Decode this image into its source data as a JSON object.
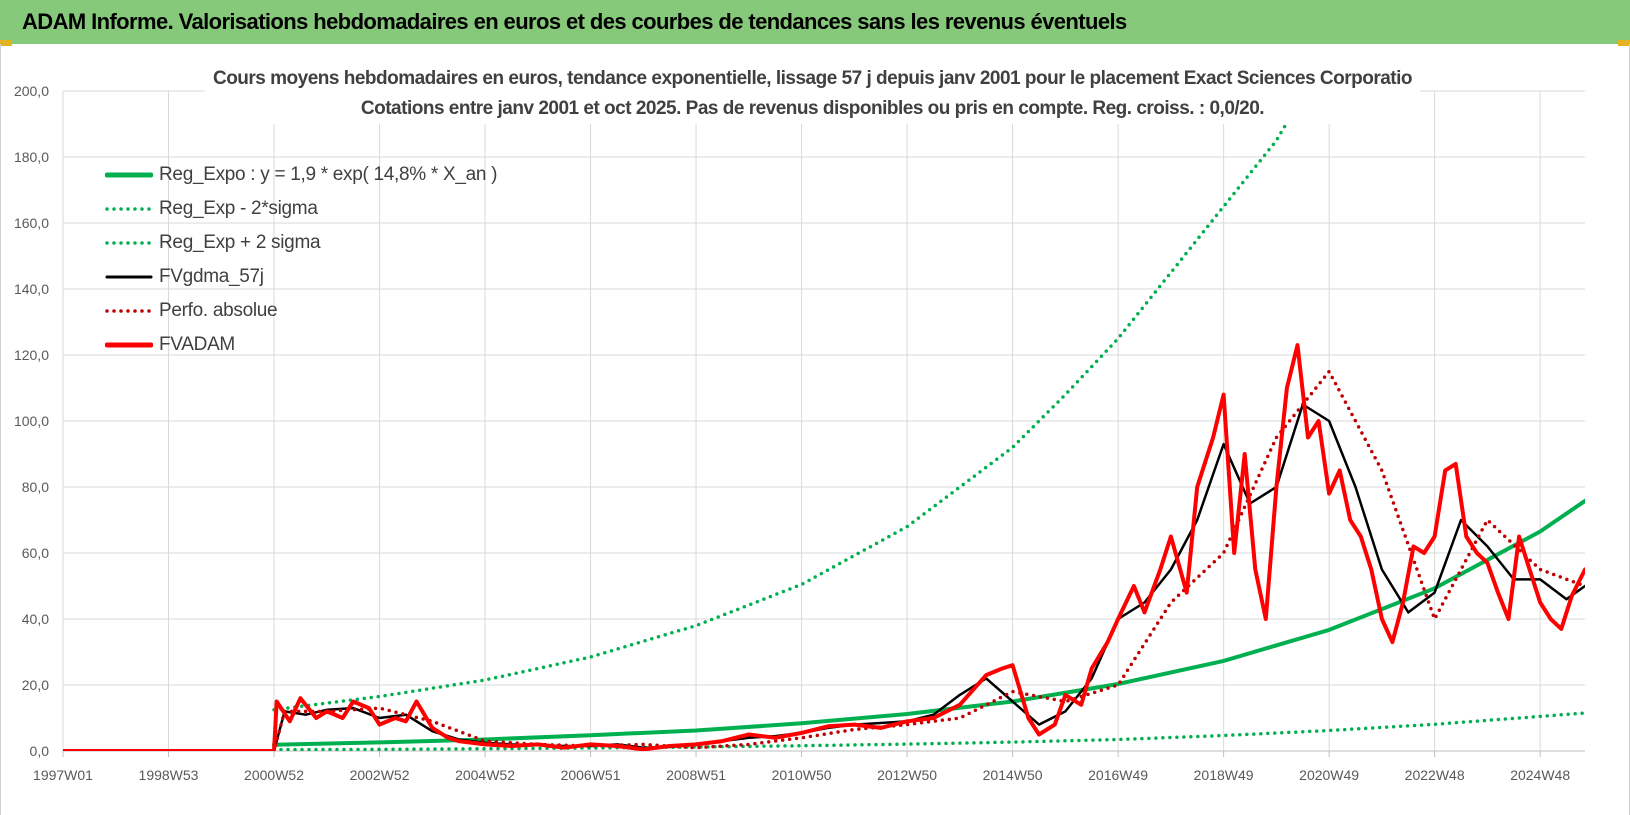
{
  "app_title": "ADAM Informe. Valorisations hebdomadaires en euros et des courbes de tendances sans les revenus éventuels",
  "chart_data": {
    "type": "line",
    "title": "Cours moyens hebdomadaires en euros, tendance exponentielle, lissage 57 j depuis janv 2001 pour le placement Exact Sciences Corporatio",
    "subtitle": "Cotations entre janv 2001 et oct 2025. Pas de revenus disponibles ou pris en compte. Reg. croiss. : 0,0/20.",
    "xlabel": "",
    "ylabel": "",
    "x_tick_labels": [
      "1997W01",
      "1998W53",
      "2000W52",
      "2002W52",
      "2004W52",
      "2006W51",
      "2008W51",
      "2010W50",
      "2012W50",
      "2014W50",
      "2016W49",
      "2018W49",
      "2020W49",
      "2022W48",
      "2024W48"
    ],
    "x_tick_years": [
      1997.0,
      1999.0,
      2001.0,
      2003.0,
      2005.0,
      2007.0,
      2009.0,
      2011.0,
      2013.0,
      2015.0,
      2017.0,
      2019.0,
      2021.0,
      2023.0,
      2025.0
    ],
    "xlim": [
      1997.0,
      2025.85
    ],
    "ylim": [
      0,
      200
    ],
    "y_ticks": [
      "0,0",
      "20,0",
      "40,0",
      "60,0",
      "80,0",
      "100,0",
      "120,0",
      "140,0",
      "160,0",
      "180,0",
      "200,0"
    ],
    "grid": true,
    "legend_position": "top-left",
    "series": [
      {
        "name": "Reg_Expo : y = 1,9 * exp( 14,8% *  X_an )",
        "style": "solid",
        "color": "#00b050",
        "x": [
          2001.0,
          2003.0,
          2005.0,
          2007.0,
          2009.0,
          2011.0,
          2013.0,
          2015.0,
          2017.0,
          2019.0,
          2021.0,
          2023.0,
          2025.0,
          2025.85
        ],
        "y": [
          1.9,
          2.6,
          3.5,
          4.8,
          6.2,
          8.4,
          11.2,
          15.0,
          20.3,
          27.3,
          36.7,
          49.3,
          66.5,
          75.8
        ]
      },
      {
        "name": "Reg_Exp - 2*sigma",
        "style": "dotted",
        "color": "#00b050",
        "x": [
          2001.0,
          2003.0,
          2005.0,
          2007.0,
          2009.0,
          2011.0,
          2013.0,
          2015.0,
          2017.0,
          2019.0,
          2021.0,
          2023.0,
          2025.0,
          2025.85
        ],
        "y": [
          0.4,
          0.5,
          0.7,
          0.9,
          1.2,
          1.6,
          2.1,
          2.7,
          3.5,
          4.7,
          6.2,
          8.1,
          10.5,
          11.5
        ]
      },
      {
        "name": "Reg_Exp + 2 sigma",
        "style": "dotted",
        "color": "#00b050",
        "x": [
          2001.0,
          2003.0,
          2005.0,
          2007.0,
          2009.0,
          2011.0,
          2013.0,
          2015.0,
          2016.0,
          2017.0,
          2018.0,
          2019.0,
          2020.0,
          2020.55
        ],
        "y": [
          12.5,
          16.5,
          21.5,
          28.5,
          38.0,
          50.5,
          68.0,
          92.0,
          108.0,
          125.0,
          145.0,
          165.0,
          185.0,
          200.0
        ]
      },
      {
        "name": "FVgdma_57j",
        "style": "solid",
        "color": "#000000",
        "x": [
          1997.0,
          2001.0,
          2001.2,
          2001.6,
          2002.0,
          2002.5,
          2003.0,
          2003.5,
          2004.0,
          2004.5,
          2005.0,
          2005.5,
          2006.0,
          2006.5,
          2007.0,
          2007.5,
          2008.0,
          2008.5,
          2009.0,
          2009.5,
          2010.0,
          2010.5,
          2011.0,
          2011.5,
          2012.0,
          2012.5,
          2013.0,
          2013.5,
          2014.0,
          2014.5,
          2015.0,
          2015.5,
          2016.0,
          2016.5,
          2017.0,
          2017.5,
          2018.0,
          2018.5,
          2019.0,
          2019.5,
          2020.0,
          2020.5,
          2021.0,
          2021.5,
          2022.0,
          2022.5,
          2023.0,
          2023.5,
          2024.0,
          2024.5,
          2025.0,
          2025.5,
          2025.85
        ],
        "y": [
          0,
          0,
          12.0,
          11.0,
          12.5,
          13.0,
          10.0,
          11.0,
          6.0,
          3.5,
          2.5,
          2.0,
          1.8,
          1.5,
          1.5,
          2.0,
          1.0,
          1.2,
          2.0,
          3.0,
          4.0,
          4.5,
          5.5,
          7.0,
          8.0,
          8.5,
          9.0,
          11.0,
          17.0,
          22.0,
          15.0,
          8.0,
          12.0,
          22.0,
          40.0,
          45.0,
          55.0,
          70.0,
          93.0,
          75.0,
          80.0,
          105.0,
          100.0,
          80.0,
          55.0,
          42.0,
          48.0,
          70.0,
          62.0,
          52.0,
          52.0,
          46.0,
          50.0
        ]
      },
      {
        "name": "Perfo. absolue",
        "style": "dotted",
        "color": "#c00000",
        "x": [
          1997.0,
          2001.0,
          2001.2,
          2002.0,
          2003.0,
          2004.0,
          2005.0,
          2006.0,
          2007.0,
          2008.0,
          2009.0,
          2010.0,
          2011.0,
          2012.0,
          2013.0,
          2014.0,
          2015.0,
          2016.0,
          2017.0,
          2018.0,
          2019.0,
          2020.0,
          2021.0,
          2022.0,
          2023.0,
          2024.0,
          2025.0,
          2025.85
        ],
        "y": [
          0,
          0,
          12.0,
          12.0,
          13.0,
          9.0,
          3.0,
          2.0,
          1.5,
          2.0,
          1.0,
          2.0,
          4.0,
          6.5,
          8.0,
          10.0,
          18.0,
          15.0,
          20.0,
          45.0,
          60.0,
          95.0,
          115.0,
          85.0,
          40.0,
          70.0,
          55.0,
          50.0
        ]
      },
      {
        "name": "FVADAM",
        "style": "solid",
        "color": "#ff0000",
        "x": [
          1997.0,
          2001.0,
          2001.05,
          2001.3,
          2001.5,
          2001.8,
          2002.0,
          2002.3,
          2002.5,
          2002.8,
          2003.0,
          2003.3,
          2003.5,
          2003.7,
          2004.0,
          2004.3,
          2004.5,
          2005.0,
          2005.5,
          2006.0,
          2006.5,
          2007.0,
          2007.5,
          2008.0,
          2008.5,
          2009.0,
          2009.5,
          2010.0,
          2010.5,
          2011.0,
          2011.5,
          2012.0,
          2012.5,
          2013.0,
          2013.5,
          2014.0,
          2014.5,
          2014.8,
          2015.0,
          2015.3,
          2015.5,
          2015.8,
          2016.0,
          2016.3,
          2016.5,
          2016.8,
          2017.0,
          2017.3,
          2017.5,
          2017.8,
          2018.0,
          2018.3,
          2018.5,
          2018.8,
          2019.0,
          2019.2,
          2019.4,
          2019.6,
          2019.8,
          2020.0,
          2020.2,
          2020.4,
          2020.6,
          2020.8,
          2021.0,
          2021.2,
          2021.4,
          2021.6,
          2021.8,
          2022.0,
          2022.2,
          2022.4,
          2022.6,
          2022.8,
          2023.0,
          2023.2,
          2023.4,
          2023.6,
          2023.8,
          2024.0,
          2024.2,
          2024.4,
          2024.6,
          2024.8,
          2025.0,
          2025.2,
          2025.4,
          2025.6,
          2025.85
        ],
        "y": [
          0,
          0,
          15.0,
          9.0,
          16.0,
          10.0,
          12.0,
          10.0,
          15.0,
          13.0,
          8.0,
          10.0,
          9.0,
          15.0,
          7.0,
          4.0,
          3.0,
          2.0,
          1.5,
          2.0,
          1.0,
          2.0,
          1.5,
          0.5,
          1.5,
          2.0,
          3.0,
          5.0,
          4.0,
          5.5,
          7.5,
          8.0,
          7.0,
          9.0,
          10.0,
          14.0,
          23.0,
          25.0,
          26.0,
          10.0,
          5.0,
          8.0,
          17.0,
          14.0,
          25.0,
          33.0,
          40.0,
          50.0,
          42.0,
          55.0,
          65.0,
          48.0,
          80.0,
          95.0,
          108.0,
          60.0,
          90.0,
          55.0,
          40.0,
          80.0,
          110.0,
          123.0,
          95.0,
          100.0,
          78.0,
          85.0,
          70.0,
          65.0,
          55.0,
          40.0,
          33.0,
          45.0,
          62.0,
          60.0,
          65.0,
          85.0,
          87.0,
          65.0,
          60.0,
          57.0,
          48.0,
          40.0,
          65.0,
          55.0,
          45.0,
          40.0,
          37.0,
          47.0,
          55.0
        ]
      }
    ]
  }
}
